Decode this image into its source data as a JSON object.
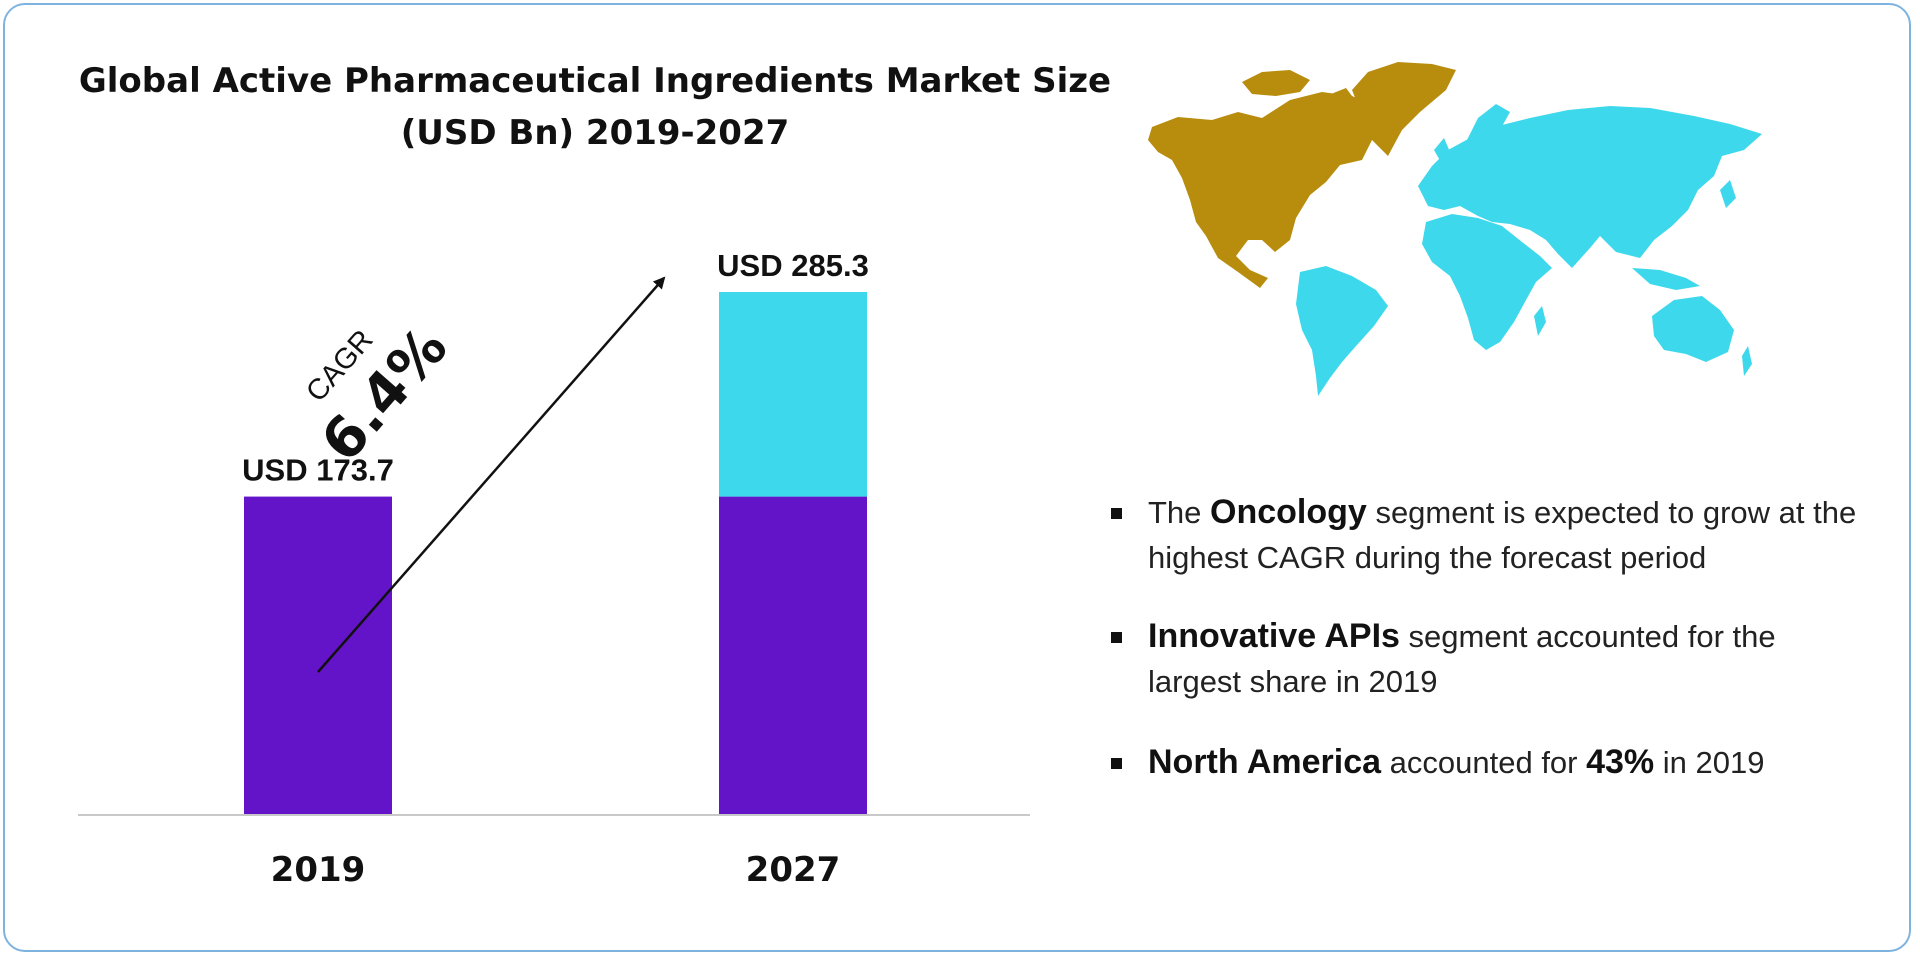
{
  "title": "Global Active Pharmaceutical Ingredients Market Size (USD Bn) 2019-2027",
  "cagr": {
    "label": "CAGR",
    "value": "6.4%"
  },
  "colors": {
    "purple": "#6414c8",
    "cyan": "#3dd8eb",
    "map_gold": "#b88d0e",
    "map_cyan": "#3dd8eb",
    "frame": "#7fb3df"
  },
  "bullets": [
    {
      "pre": "The ",
      "bold": "Oncology",
      "post": " segment is expected to grow at the highest CAGR during the forecast period"
    },
    {
      "pre": "",
      "bold": "Innovative APIs",
      "post": " segment accounted for the largest share in 2019"
    },
    {
      "pre": "",
      "bold": "North America",
      "post": " accounted for ",
      "bold2": "43%",
      "post2": " in 2019"
    }
  ],
  "chart_data": {
    "type": "bar",
    "categories": [
      "2019",
      "2027"
    ],
    "values": [
      173.7,
      285.3
    ],
    "value_labels": [
      "USD 173.7",
      "USD 285.3"
    ],
    "base_segment_value": 173.7,
    "title": "Global Active Pharmaceutical Ingredients Market Size (USD Bn) 2019-2027",
    "xlabel": "",
    "ylabel": "",
    "grid": false
  }
}
